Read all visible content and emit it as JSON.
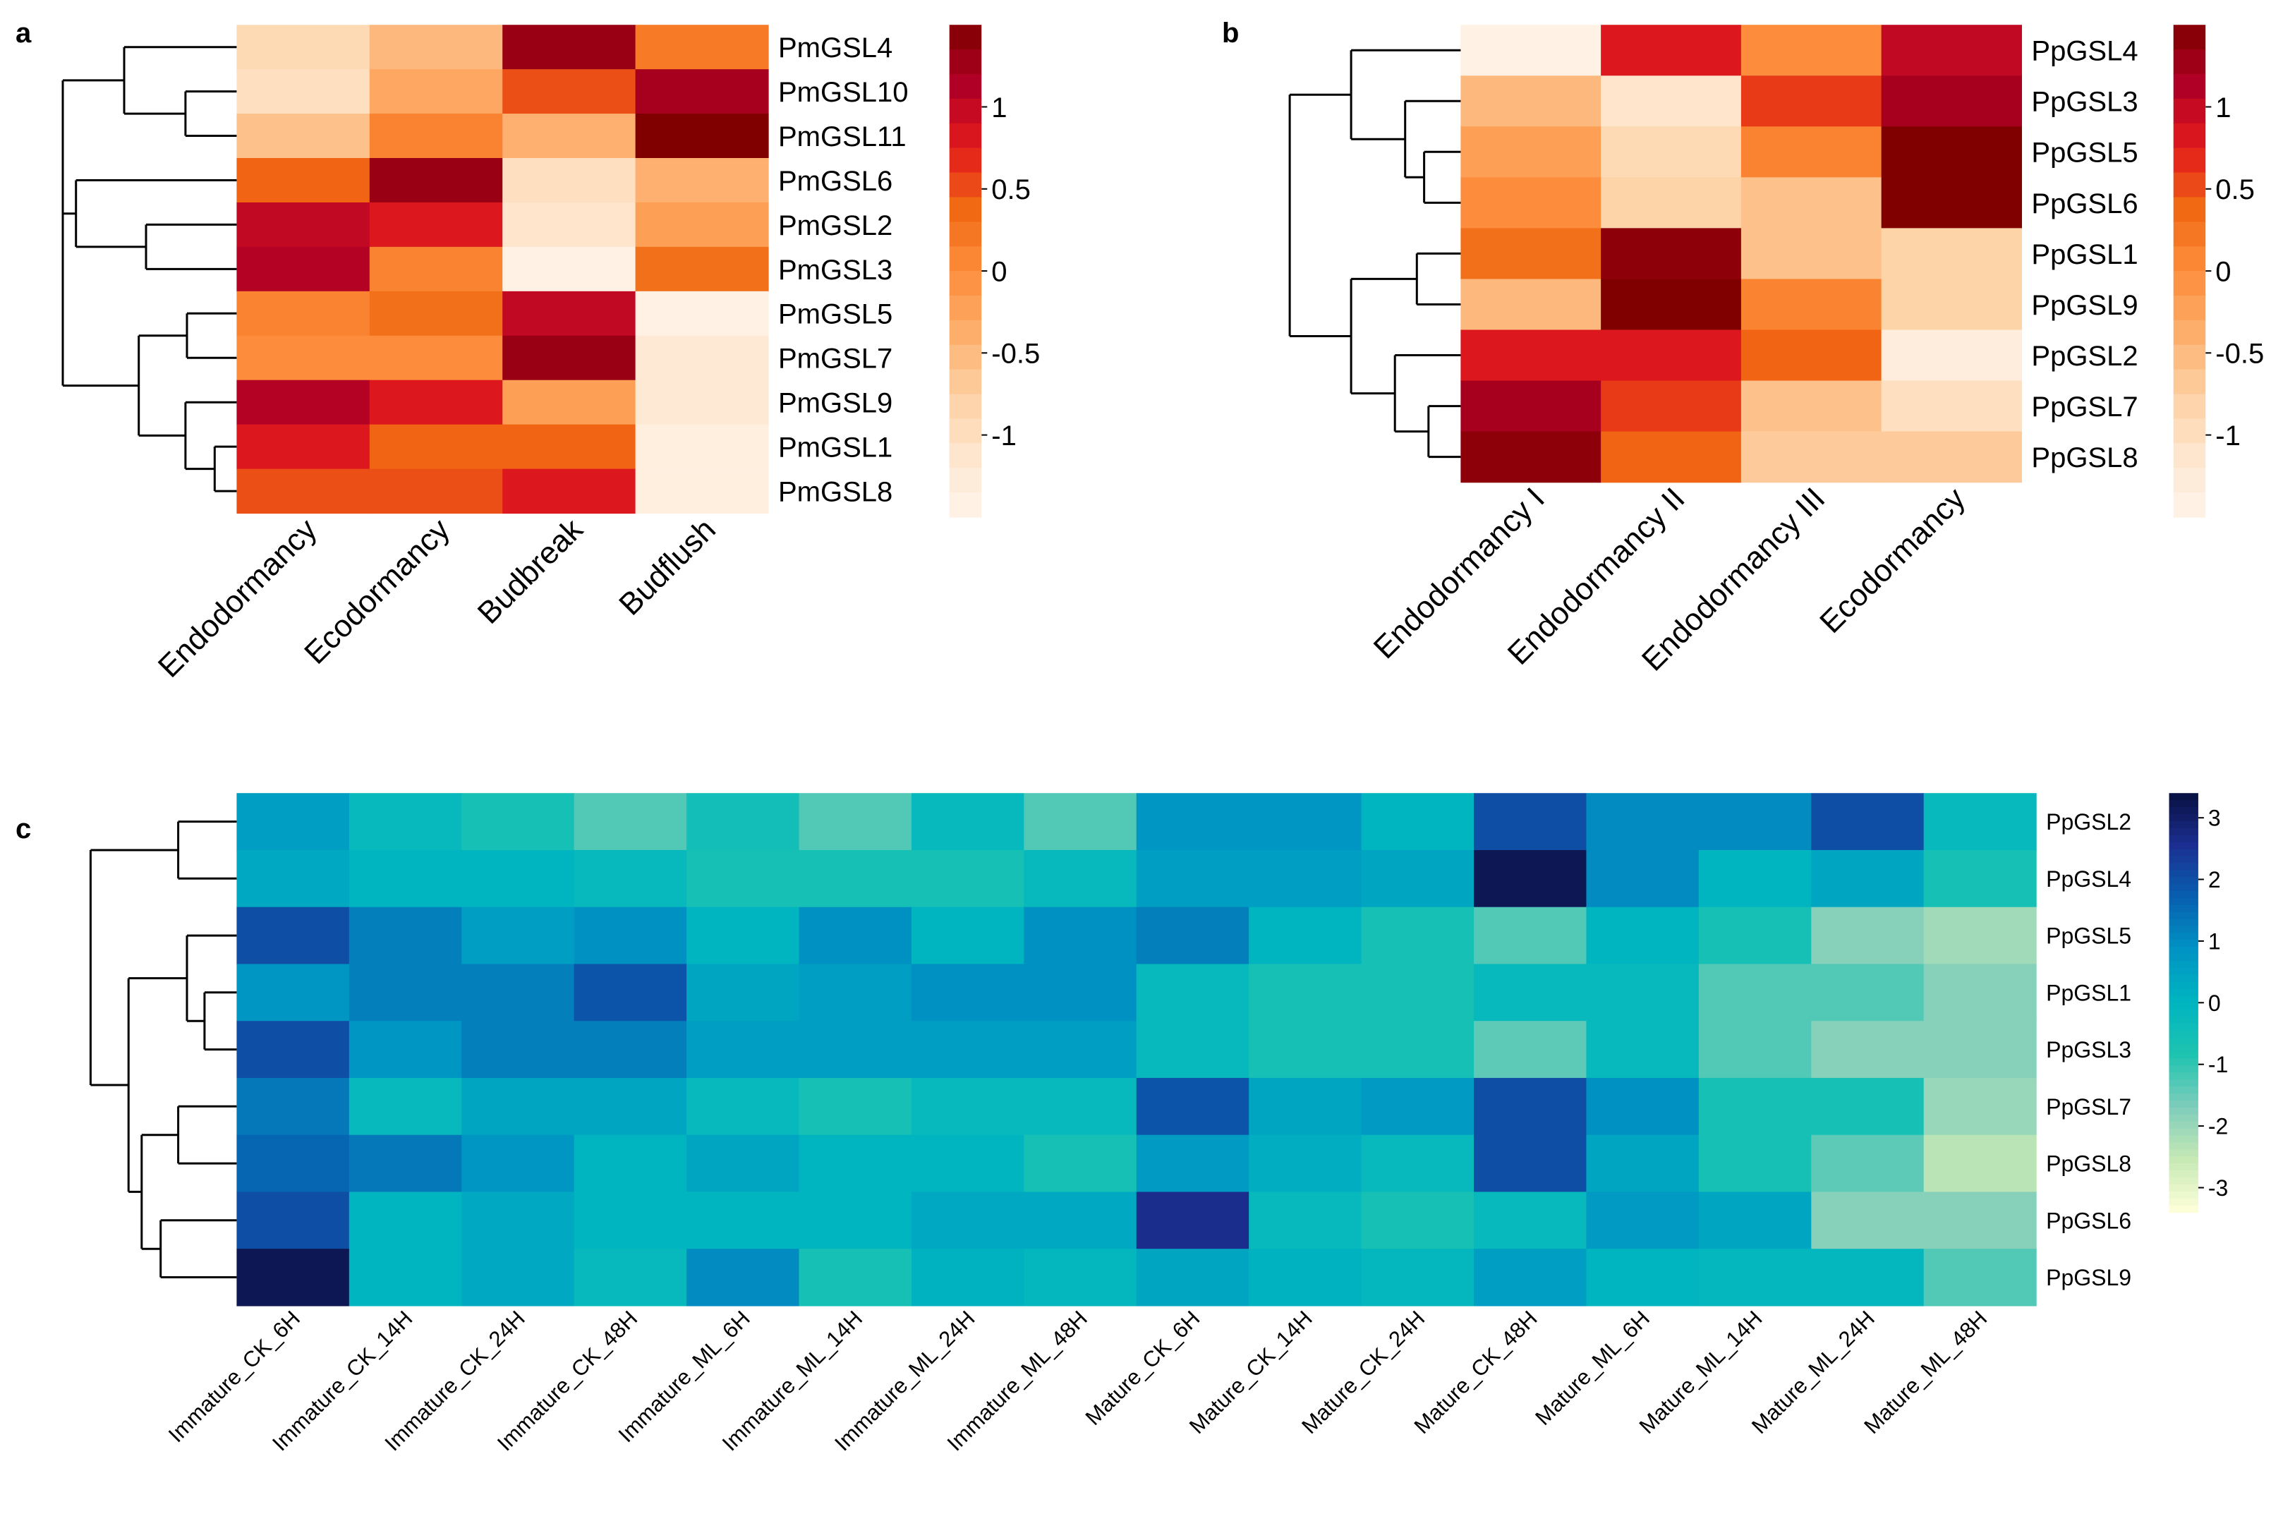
{
  "chart_data": [
    {
      "panel": "a",
      "type": "heatmap",
      "colormap": "reds",
      "columns": [
        "Endodormancy",
        "Ecodormancy",
        "Budbreak",
        "Budflush"
      ],
      "rows": [
        "PmGSL4",
        "PmGSL10",
        "PmGSL11",
        "PmGSL6",
        "PmGSL2",
        "PmGSL3",
        "PmGSL5",
        "PmGSL7",
        "PmGSL9",
        "PmGSL1",
        "PmGSL8"
      ],
      "values": [
        [
          -0.9,
          -0.5,
          1.3,
          0.2
        ],
        [
          -1.0,
          -0.3,
          0.5,
          1.2
        ],
        [
          -0.6,
          0.1,
          -0.4,
          1.5
        ],
        [
          0.4,
          1.3,
          -1.0,
          -0.4
        ],
        [
          1.0,
          0.8,
          -1.1,
          -0.2
        ],
        [
          1.1,
          0.1,
          -1.4,
          0.3
        ],
        [
          0.1,
          0.3,
          1.0,
          -1.4
        ],
        [
          0.0,
          0.0,
          1.3,
          -1.2
        ],
        [
          1.1,
          0.8,
          -0.2,
          -1.2
        ],
        [
          0.8,
          0.4,
          0.4,
          -1.35
        ],
        [
          0.5,
          0.5,
          0.8,
          -1.35
        ]
      ],
      "colorbar": {
        "ticks": [
          1,
          0.5,
          0,
          -0.5,
          -1
        ],
        "tick_labels": [
          "1",
          "0.5",
          "0",
          "-0.5",
          "-1"
        ],
        "range": [
          -1.5,
          1.5
        ]
      }
    },
    {
      "panel": "b",
      "type": "heatmap",
      "colormap": "reds",
      "columns": [
        "Endodormancy I",
        "Endodormancy II",
        "Endodormancy III",
        "Ecodormancy"
      ],
      "rows": [
        "PpGSL4",
        "PpGSL3",
        "PpGSL5",
        "PpGSL6",
        "PpGSL1",
        "PpGSL9",
        "PpGSL2",
        "PpGSL7",
        "PpGSL8"
      ],
      "values": [
        [
          -1.4,
          0.8,
          0.0,
          1.0
        ],
        [
          -0.5,
          -1.1,
          0.6,
          1.2
        ],
        [
          -0.2,
          -0.9,
          0.1,
          1.5
        ],
        [
          0.0,
          -0.8,
          -0.6,
          1.5
        ],
        [
          0.3,
          1.4,
          -0.6,
          -0.8
        ],
        [
          -0.5,
          1.5,
          0.1,
          -0.8
        ],
        [
          0.8,
          0.8,
          0.4,
          -1.3
        ],
        [
          1.2,
          0.6,
          -0.6,
          -1.0
        ],
        [
          1.4,
          0.4,
          -0.7,
          -0.7
        ]
      ],
      "colorbar": {
        "ticks": [
          1,
          0.5,
          0,
          -0.5,
          -1
        ],
        "tick_labels": [
          "1",
          "0.5",
          "0",
          "-0.5",
          "-1"
        ],
        "range": [
          -1.5,
          1.5
        ]
      }
    },
    {
      "panel": "c",
      "type": "heatmap",
      "colormap": "ylgnbu",
      "columns": [
        "Immature_CK_6H",
        "Immature_CK_14H",
        "Immature_CK_24H",
        "Immature_CK_48H",
        "Immature_ML_6H",
        "Immature_ML_14H",
        "Immature_ML_24H",
        "Immature_ML_48H",
        "Mature_CK_6H",
        "Mature_CK_14H",
        "Mature_CK_24H",
        "Mature_CK_48H",
        "Mature_ML_6H",
        "Mature_ML_14H",
        "Mature_ML_24H",
        "Mature_ML_48H"
      ],
      "rows": [
        "PpGSL2",
        "PpGSL4",
        "PpGSL5",
        "PpGSL1",
        "PpGSL3",
        "PpGSL7",
        "PpGSL8",
        "PpGSL6",
        "PpGSL9"
      ],
      "values": [
        [
          0.6,
          -0.2,
          -0.6,
          -1.3,
          -0.5,
          -1.3,
          -0.2,
          -1.3,
          0.8,
          0.8,
          0.0,
          2.0,
          1.0,
          1.0,
          2.0,
          -0.2
        ],
        [
          0.3,
          0.0,
          0.0,
          -0.2,
          -0.6,
          -0.6,
          -0.6,
          -0.2,
          0.6,
          0.6,
          0.4,
          3.2,
          1.0,
          0.0,
          0.4,
          -0.6
        ],
        [
          2.0,
          1.2,
          0.6,
          0.9,
          0.0,
          0.9,
          0.0,
          0.9,
          1.2,
          0.0,
          -0.6,
          -1.3,
          0.0,
          -0.6,
          -1.8,
          -2.1
        ],
        [
          0.8,
          1.2,
          1.2,
          1.9,
          0.4,
          0.6,
          0.9,
          0.9,
          -0.2,
          -0.6,
          -0.6,
          -0.2,
          -0.2,
          -1.3,
          -1.3,
          -1.8
        ],
        [
          2.0,
          0.8,
          1.2,
          1.2,
          0.6,
          0.6,
          0.6,
          0.6,
          -0.2,
          -0.6,
          -0.6,
          -1.4,
          -0.2,
          -1.3,
          -1.8,
          -1.8
        ],
        [
          1.3,
          -0.2,
          0.4,
          0.4,
          -0.2,
          -0.6,
          -0.2,
          -0.2,
          1.9,
          0.4,
          0.7,
          2.0,
          0.9,
          -0.6,
          -0.6,
          -2.0
        ],
        [
          1.6,
          1.3,
          0.8,
          0.0,
          0.4,
          0.0,
          0.0,
          -0.6,
          0.7,
          0.2,
          -0.2,
          2.0,
          0.4,
          -0.6,
          -1.4,
          -2.4
        ],
        [
          2.0,
          0.0,
          0.3,
          0.0,
          0.0,
          0.0,
          0.3,
          0.3,
          2.6,
          -0.2,
          -0.6,
          -0.2,
          0.7,
          0.4,
          -1.8,
          -1.8
        ],
        [
          3.2,
          0.0,
          0.3,
          -0.2,
          1.0,
          -0.6,
          0.1,
          -0.1,
          0.4,
          0.1,
          -0.1,
          0.6,
          0.0,
          -0.1,
          -0.1,
          -1.3
        ]
      ],
      "colorbar": {
        "ticks": [
          3,
          2,
          1,
          0,
          -1,
          -2,
          -3
        ],
        "tick_labels": [
          "3",
          "2",
          "1",
          "0",
          "-1",
          "-2",
          "-3"
        ],
        "range": [
          -3.4,
          3.4
        ]
      }
    }
  ],
  "panel_labels": [
    "a",
    "b",
    "c"
  ],
  "colors": {
    "reds": [
      "#fff5eb",
      "#fee6ce",
      "#fdd0a2",
      "#fdae6b",
      "#fd8d3c",
      "#f16913",
      "#e31a1c",
      "#b10026",
      "#800000"
    ],
    "ylgnbu": [
      "#ffffd9",
      "#c7e9b4",
      "#7fcdbb",
      "#1fc4b0",
      "#00b5c0",
      "#0094c4",
      "#0760b0",
      "#1b2f92",
      "#081040"
    ]
  }
}
